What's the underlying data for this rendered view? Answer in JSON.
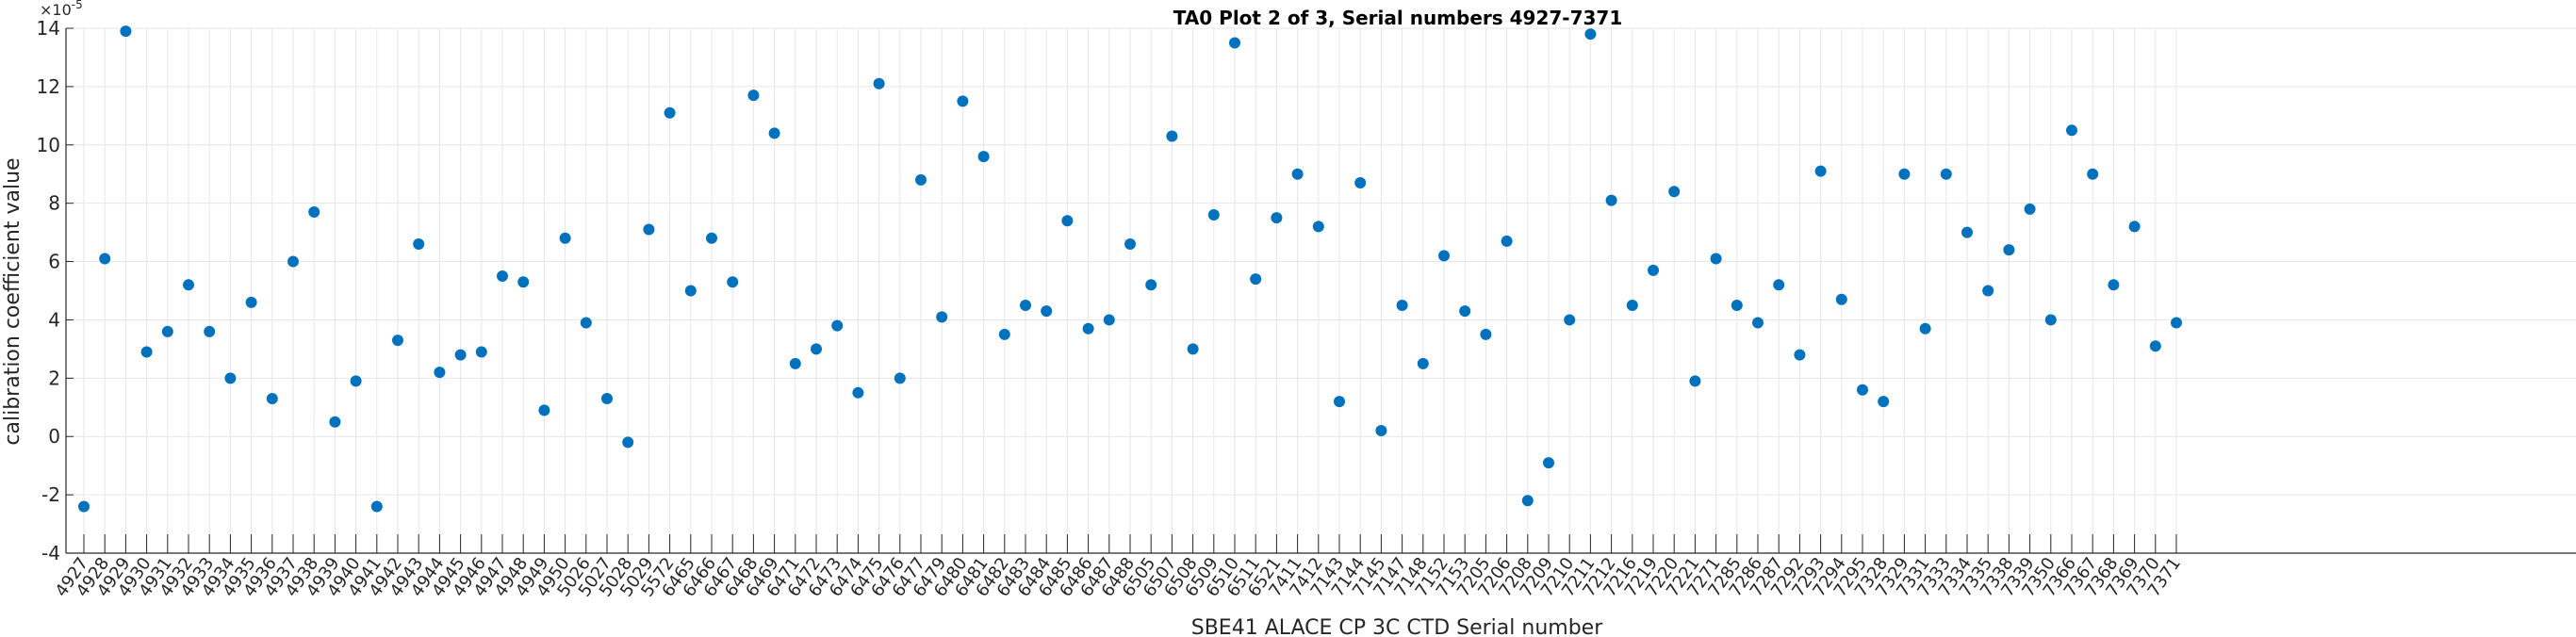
{
  "chart_data": {
    "type": "scatter",
    "title": "TA0 Plot 2 of 3, Serial numbers 4927-7371",
    "xlabel": "SBE41 ALACE CP 3C CTD Serial number",
    "ylabel": "calibration coefficient value",
    "y_exponent_label": "×10",
    "y_exponent_power": "-5",
    "ylim": [
      -4,
      14
    ],
    "yticks": [
      "-4",
      "-2",
      "0",
      "2",
      "4",
      "6",
      "8",
      "10",
      "12",
      "14"
    ],
    "grid": true,
    "marker_color": "#0072BD",
    "categories": [
      "4927",
      "4928",
      "4929",
      "4930",
      "4931",
      "4932",
      "4933",
      "4934",
      "4935",
      "4936",
      "4937",
      "4938",
      "4939",
      "4940",
      "4941",
      "4942",
      "4943",
      "4944",
      "4945",
      "4946",
      "4947",
      "4948",
      "4949",
      "4950",
      "5026",
      "5027",
      "5028",
      "5029",
      "5572",
      "6465",
      "6466",
      "6467",
      "6468",
      "6469",
      "6471",
      "6472",
      "6473",
      "6474",
      "6475",
      "6476",
      "6477",
      "6479",
      "6480",
      "6481",
      "6482",
      "6483",
      "6484",
      "6485",
      "6486",
      "6487",
      "6488",
      "6505",
      "6507",
      "6508",
      "6509",
      "6510",
      "6511",
      "6521",
      "7411",
      "7412",
      "7143",
      "7144",
      "7145",
      "7147",
      "7148",
      "7152",
      "7153",
      "7205",
      "7206",
      "7208",
      "7209",
      "7210",
      "7211",
      "7212",
      "7216",
      "7219",
      "7220",
      "7221",
      "7271",
      "7285",
      "7286",
      "7287",
      "7292",
      "7293",
      "7294",
      "7295",
      "7328",
      "7329",
      "7331",
      "7333",
      "7334",
      "7335",
      "7338",
      "7339",
      "7350",
      "7366",
      "7367",
      "7368",
      "7369",
      "7370",
      "7371"
    ],
    "values": [
      -2.4,
      6.1,
      13.9,
      2.9,
      3.6,
      5.2,
      3.6,
      2.0,
      4.6,
      1.3,
      6.0,
      7.7,
      0.5,
      1.9,
      -2.4,
      3.3,
      6.6,
      2.2,
      2.8,
      2.9,
      5.5,
      5.3,
      0.9,
      6.8,
      3.9,
      1.3,
      -0.2,
      7.1,
      11.1,
      5.0,
      6.8,
      5.3,
      11.7,
      10.4,
      2.5,
      3.0,
      3.8,
      1.5,
      12.1,
      2.0,
      8.8,
      4.1,
      11.5,
      9.6,
      3.5,
      4.5,
      4.3,
      7.4,
      3.7,
      4.0,
      6.6,
      5.2,
      10.3,
      3.0,
      7.6,
      13.5,
      5.4,
      7.5,
      9.0,
      7.2,
      1.2,
      8.7,
      0.2,
      4.5,
      2.5,
      6.2,
      4.3,
      3.5,
      6.7,
      -2.2,
      -0.9,
      4.0,
      13.8,
      8.1,
      4.5,
      5.7,
      8.4,
      1.9,
      6.1,
      4.5,
      3.9,
      5.2,
      2.8,
      9.1,
      4.7,
      1.6,
      1.2,
      9.0,
      3.7,
      9.0,
      7.0,
      5.0,
      6.4,
      7.8,
      4.0,
      10.5,
      9.0,
      5.2,
      7.2,
      3.1,
      3.9
    ]
  }
}
